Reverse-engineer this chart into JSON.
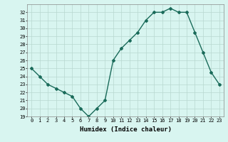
{
  "x": [
    0,
    1,
    2,
    3,
    4,
    5,
    6,
    7,
    8,
    9,
    10,
    11,
    12,
    13,
    14,
    15,
    16,
    17,
    18,
    19,
    20,
    21,
    22,
    23
  ],
  "y": [
    25,
    24,
    23,
    22.5,
    22,
    21.5,
    20,
    19,
    20,
    21,
    26,
    27.5,
    28.5,
    29.5,
    31,
    32,
    32,
    32.5,
    32,
    32,
    29.5,
    27,
    24.5,
    23
  ],
  "line_color": "#1a6b5a",
  "marker": "D",
  "marker_size": 2,
  "bg_color": "#d8f5f0",
  "grid_color": "#b8d8d0",
  "xlabel": "Humidex (Indice chaleur)",
  "ylim": [
    19,
    33
  ],
  "yticks": [
    19,
    20,
    21,
    22,
    23,
    24,
    25,
    26,
    27,
    28,
    29,
    30,
    31,
    32
  ],
  "xticks": [
    0,
    1,
    2,
    3,
    4,
    5,
    6,
    7,
    8,
    9,
    10,
    11,
    12,
    13,
    14,
    15,
    16,
    17,
    18,
    19,
    20,
    21,
    22,
    23
  ],
  "tick_fontsize": 5,
  "xlabel_fontsize": 6.5,
  "line_width": 1.0
}
